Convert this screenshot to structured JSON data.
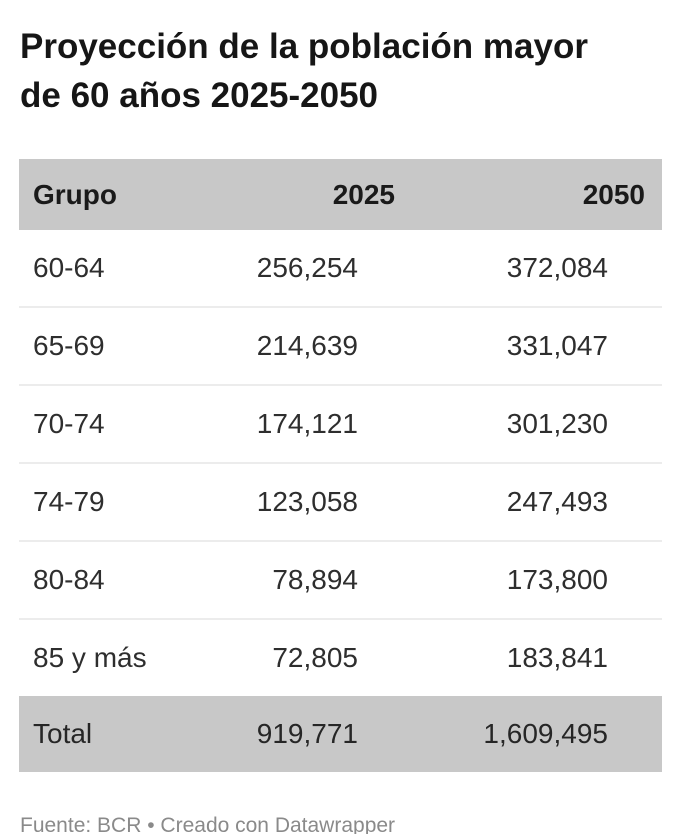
{
  "title": "Proyección de la población mayor de 60 años 2025-2050",
  "table": {
    "columns": [
      "Grupo",
      "2025",
      "2050"
    ],
    "rows": [
      {
        "group": "60-64",
        "y2025": "256,254",
        "y2050": "372,084"
      },
      {
        "group": "65-69",
        "y2025": "214,639",
        "y2050": "331,047"
      },
      {
        "group": "70-74",
        "y2025": "174,121",
        "y2050": "301,230"
      },
      {
        "group": "74-79",
        "y2025": "123,058",
        "y2050": "247,493"
      },
      {
        "group": "80-84",
        "y2025": "78,894",
        "y2050": "173,800"
      },
      {
        "group": "85 y más",
        "y2025": "72,805",
        "y2050": "183,841"
      },
      {
        "group": "Total",
        "y2025": "919,771",
        "y2050": "1,609,495"
      }
    ]
  },
  "footer": {
    "source_label": "Fuente: BCR",
    "separator": " • ",
    "attribution": "Creado con Datawrapper"
  },
  "colors": {
    "background": "#ffffff",
    "header_band": "#c8c8c8",
    "total_band": "#c8c8c8",
    "title_text": "#161616",
    "body_text": "#2e2e2e",
    "divider": "#ececec",
    "footer_text": "#8a8a8a"
  },
  "chart_data": {
    "type": "table",
    "title": "Proyección de la población mayor de 60 años 2025-2050",
    "categories": [
      "60-64",
      "65-69",
      "70-74",
      "74-79",
      "80-84",
      "85 y más"
    ],
    "series": [
      {
        "name": "2025",
        "values": [
          256254,
          214639,
          174121,
          123058,
          78894,
          72805
        ]
      },
      {
        "name": "2050",
        "values": [
          372084,
          331047,
          301230,
          247493,
          173800,
          183841
        ]
      }
    ],
    "totals": {
      "2025": 919771,
      "2050": 1609495
    },
    "source": "BCR",
    "attribution": "Datawrapper"
  }
}
